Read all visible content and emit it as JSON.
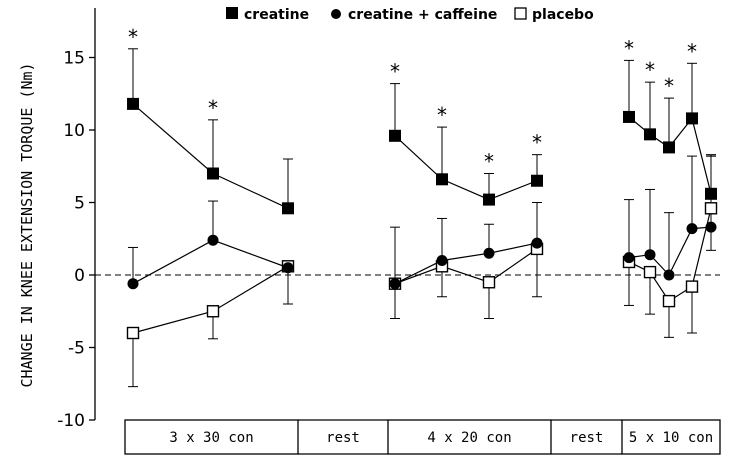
{
  "chart_data": {
    "type": "line",
    "ylabel": "CHANGE IN KNEE EXTENSION TORQUE (Nm)",
    "xlabel": "",
    "ylim": [
      -10,
      17
    ],
    "yticks": [
      -10,
      -5,
      0,
      5,
      10,
      15
    ],
    "legend": {
      "position": "top",
      "entries": [
        {
          "name": "creatine",
          "marker": "filled-square"
        },
        {
          "name": "creatine + caffeine",
          "marker": "filled-circle"
        },
        {
          "name": "placebo",
          "marker": "open-square"
        }
      ]
    },
    "zero_line": "dashed",
    "phases": [
      {
        "label": "3 x 30 con",
        "points": 3
      },
      {
        "label": "rest",
        "points": 0
      },
      {
        "label": "4 x 20 con",
        "points": 4
      },
      {
        "label": "rest",
        "points": 0
      },
      {
        "label": "5 x 10 con",
        "points": 5
      }
    ],
    "series": [
      {
        "name": "creatine",
        "marker": "filled-square",
        "segments": [
          {
            "phase": 0,
            "values": [
              11.8,
              7.0,
              4.6
            ],
            "err_up": [
              3.8,
              3.7,
              3.4
            ],
            "err_down": [
              0,
              0,
              0
            ],
            "significant": [
              true,
              true,
              false
            ]
          },
          {
            "phase": 2,
            "values": [
              9.6,
              6.6,
              5.2,
              6.5
            ],
            "err_up": [
              3.6,
              3.6,
              1.8,
              1.8
            ],
            "err_down": [
              0,
              0,
              0,
              0
            ],
            "significant": [
              true,
              true,
              true,
              true
            ]
          },
          {
            "phase": 4,
            "values": [
              10.9,
              9.7,
              8.8,
              10.8,
              5.6
            ],
            "err_up": [
              3.9,
              3.6,
              3.4,
              3.8,
              2.6
            ],
            "err_down": [
              0,
              0,
              0,
              0,
              0
            ],
            "significant": [
              true,
              true,
              true,
              true,
              false
            ]
          }
        ]
      },
      {
        "name": "creatine + caffeine",
        "marker": "filled-circle",
        "segments": [
          {
            "phase": 0,
            "values": [
              -0.6,
              2.4,
              0.5
            ],
            "err_up": [
              2.5,
              2.7,
              0
            ],
            "err_down": [
              0,
              0,
              0
            ]
          },
          {
            "phase": 2,
            "values": [
              -0.6,
              1.0,
              1.5,
              2.2
            ],
            "err_up": [
              3.9,
              2.9,
              2.0,
              2.8
            ],
            "err_down": [
              0,
              0,
              0,
              0
            ]
          },
          {
            "phase": 4,
            "values": [
              1.2,
              1.4,
              0.0,
              3.2,
              3.3
            ],
            "err_up": [
              4.0,
              4.5,
              4.3,
              5.0,
              5.0
            ],
            "err_down": [
              0,
              0,
              0,
              0,
              1.6
            ]
          }
        ]
      },
      {
        "name": "placebo",
        "marker": "open-square",
        "segments": [
          {
            "phase": 0,
            "values": [
              -4.0,
              -2.5,
              0.6
            ],
            "err_up": [
              0,
              0,
              0
            ],
            "err_down": [
              3.7,
              1.9,
              2.6
            ]
          },
          {
            "phase": 2,
            "values": [
              -0.6,
              0.6,
              -0.5,
              1.8
            ],
            "err_up": [
              0,
              0,
              0,
              0
            ],
            "err_down": [
              2.4,
              2.1,
              2.5,
              3.3
            ]
          },
          {
            "phase": 4,
            "values": [
              0.9,
              0.2,
              -1.8,
              -0.8,
              4.6
            ],
            "err_up": [
              0,
              0,
              0,
              0,
              3.6
            ],
            "err_down": [
              3.0,
              2.9,
              2.5,
              3.2,
              0
            ]
          }
        ]
      }
    ],
    "significance_marker": "*"
  }
}
